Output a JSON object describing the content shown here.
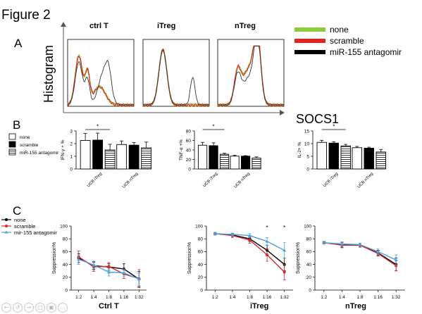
{
  "figure_title": "Figure 2",
  "colors": {
    "none": "#8ccd3a",
    "scramble": "#e8211d",
    "antagomir": "#000000",
    "c_none": "#000000",
    "c_scramble": "#d8262c",
    "c_antagomir": "#4aa3e0"
  },
  "panelA": {
    "letter": "A",
    "ylabel": "Histogram",
    "xlabel": "SOCS1",
    "legend": [
      "none",
      "scramble",
      "miR-155 antagomir"
    ],
    "titles": [
      "ctrl T",
      "iTreg",
      "nTreg"
    ]
  },
  "panelB": {
    "letter": "B",
    "legend": [
      "none",
      "scramble",
      "miR-155 antagomir"
    ]
  },
  "panelC": {
    "letter": "C",
    "legend": [
      "none",
      "scramble",
      "mir-155 antagomir"
    ]
  },
  "slide_nav": [
    "←",
    "↺",
    "→",
    "□",
    "▣",
    "…"
  ],
  "chart_data": [
    {
      "type": "bar",
      "id": "ifng",
      "ylabel": "IFN-γ + %",
      "ylim": [
        0,
        3
      ],
      "yticks": [
        "0",
        "1",
        "2",
        "3"
      ],
      "categories": [
        "UCB iTreg",
        "UCB nTreg"
      ],
      "series": [
        {
          "name": "none",
          "values": [
            2.25,
            1.93
          ],
          "err": [
            0.55,
            0.28
          ]
        },
        {
          "name": "scramble",
          "values": [
            2.28,
            1.88
          ],
          "err": [
            0.55,
            0.2
          ]
        },
        {
          "name": "miR-155 antagomir",
          "values": [
            1.5,
            1.67
          ],
          "err": [
            0.45,
            0.45
          ]
        }
      ],
      "sig": "*"
    },
    {
      "type": "bar",
      "id": "tnfa",
      "ylabel": "TNF-α +%",
      "ylim": [
        0,
        80
      ],
      "yticks": [
        "0",
        "20",
        "40",
        "60",
        "80"
      ],
      "categories": [
        "UCB iTreg",
        "UCB nTreg"
      ],
      "series": [
        {
          "name": "none",
          "values": [
            50,
            27
          ],
          "err": [
            6,
            2
          ]
        },
        {
          "name": "scramble",
          "values": [
            49,
            27
          ],
          "err": [
            6,
            1
          ]
        },
        {
          "name": "miR-155 antagomir",
          "values": [
            31,
            23
          ],
          "err": [
            2,
            2.5
          ]
        }
      ],
      "sig": "*"
    },
    {
      "type": "bar",
      "id": "il2",
      "ylabel": "IL-2+ %",
      "ylim": [
        0,
        15
      ],
      "yticks": [
        "0",
        "5",
        "10",
        "15"
      ],
      "categories": [
        "UCB iTreg",
        "UCB nTreg"
      ],
      "series": [
        {
          "name": "none",
          "values": [
            10.5,
            8.4
          ],
          "err": [
            0.8,
            0.5
          ]
        },
        {
          "name": "scramble",
          "values": [
            10.2,
            8.2
          ],
          "err": [
            0.5,
            0.4
          ]
        },
        {
          "name": "miR-155 antagomir",
          "values": [
            9.1,
            6.7
          ],
          "err": [
            0.6,
            1.0
          ]
        }
      ],
      "sig": "*"
    },
    {
      "type": "line",
      "id": "ctrlt",
      "title": "Ctrl T",
      "ylabel": "Suppression%",
      "ylim": [
        0,
        100
      ],
      "yticks": [
        "0",
        "20",
        "40",
        "60",
        "80",
        "100"
      ],
      "categories": [
        "1:2",
        "1:4",
        "1:8",
        "1:16",
        "1:32"
      ],
      "series": [
        {
          "name": "none",
          "values": [
            50,
            38,
            36,
            33,
            17
          ],
          "err": [
            7,
            6,
            5,
            8,
            12
          ]
        },
        {
          "name": "scramble",
          "values": [
            52,
            36,
            37,
            25,
            18
          ],
          "err": [
            9,
            7,
            6,
            7,
            14
          ]
        },
        {
          "name": "mir-155 antagomir",
          "values": [
            48,
            39,
            28,
            27,
            17
          ],
          "err": [
            8,
            6,
            6,
            6,
            10
          ]
        }
      ]
    },
    {
      "type": "line",
      "id": "itreg",
      "title": "iTreg",
      "ylabel": "Suppression%",
      "ylim": [
        0,
        100
      ],
      "yticks": [
        "0",
        "20",
        "40",
        "60",
        "80",
        "100"
      ],
      "categories": [
        "1:2",
        "1:4",
        "1:8",
        "1:16",
        "1:32"
      ],
      "series": [
        {
          "name": "none",
          "values": [
            88,
            86,
            80,
            62,
            40
          ],
          "err": [
            2,
            2,
            4,
            8,
            10
          ]
        },
        {
          "name": "scramble",
          "values": [
            88,
            85,
            78,
            55,
            28
          ],
          "err": [
            2,
            3,
            5,
            10,
            12
          ]
        },
        {
          "name": "mir-155 antagomir",
          "values": [
            88,
            87,
            85,
            76,
            62
          ],
          "err": [
            2,
            2,
            3,
            6,
            12
          ]
        }
      ],
      "sig": [
        "",
        "",
        "",
        "*",
        "*"
      ]
    },
    {
      "type": "line",
      "id": "ntreg",
      "title": "nTreg",
      "ylabel": "Suppression%",
      "ylim": [
        0,
        100
      ],
      "yticks": [
        "0",
        "20",
        "40",
        "60",
        "80",
        "100"
      ],
      "categories": [
        "1:2",
        "1:4",
        "1:8",
        "1:16",
        "1:32"
      ],
      "series": [
        {
          "name": "none",
          "values": [
            74,
            71,
            70,
            58,
            40
          ],
          "err": [
            2,
            4,
            3,
            4,
            10
          ]
        },
        {
          "name": "scramble",
          "values": [
            74,
            70,
            70,
            57,
            38
          ],
          "err": [
            2,
            4,
            3,
            4,
            8
          ]
        },
        {
          "name": "mir-155 antagomir",
          "values": [
            74,
            72,
            71,
            60,
            47
          ],
          "err": [
            2,
            3,
            2,
            4,
            8
          ]
        }
      ]
    }
  ]
}
